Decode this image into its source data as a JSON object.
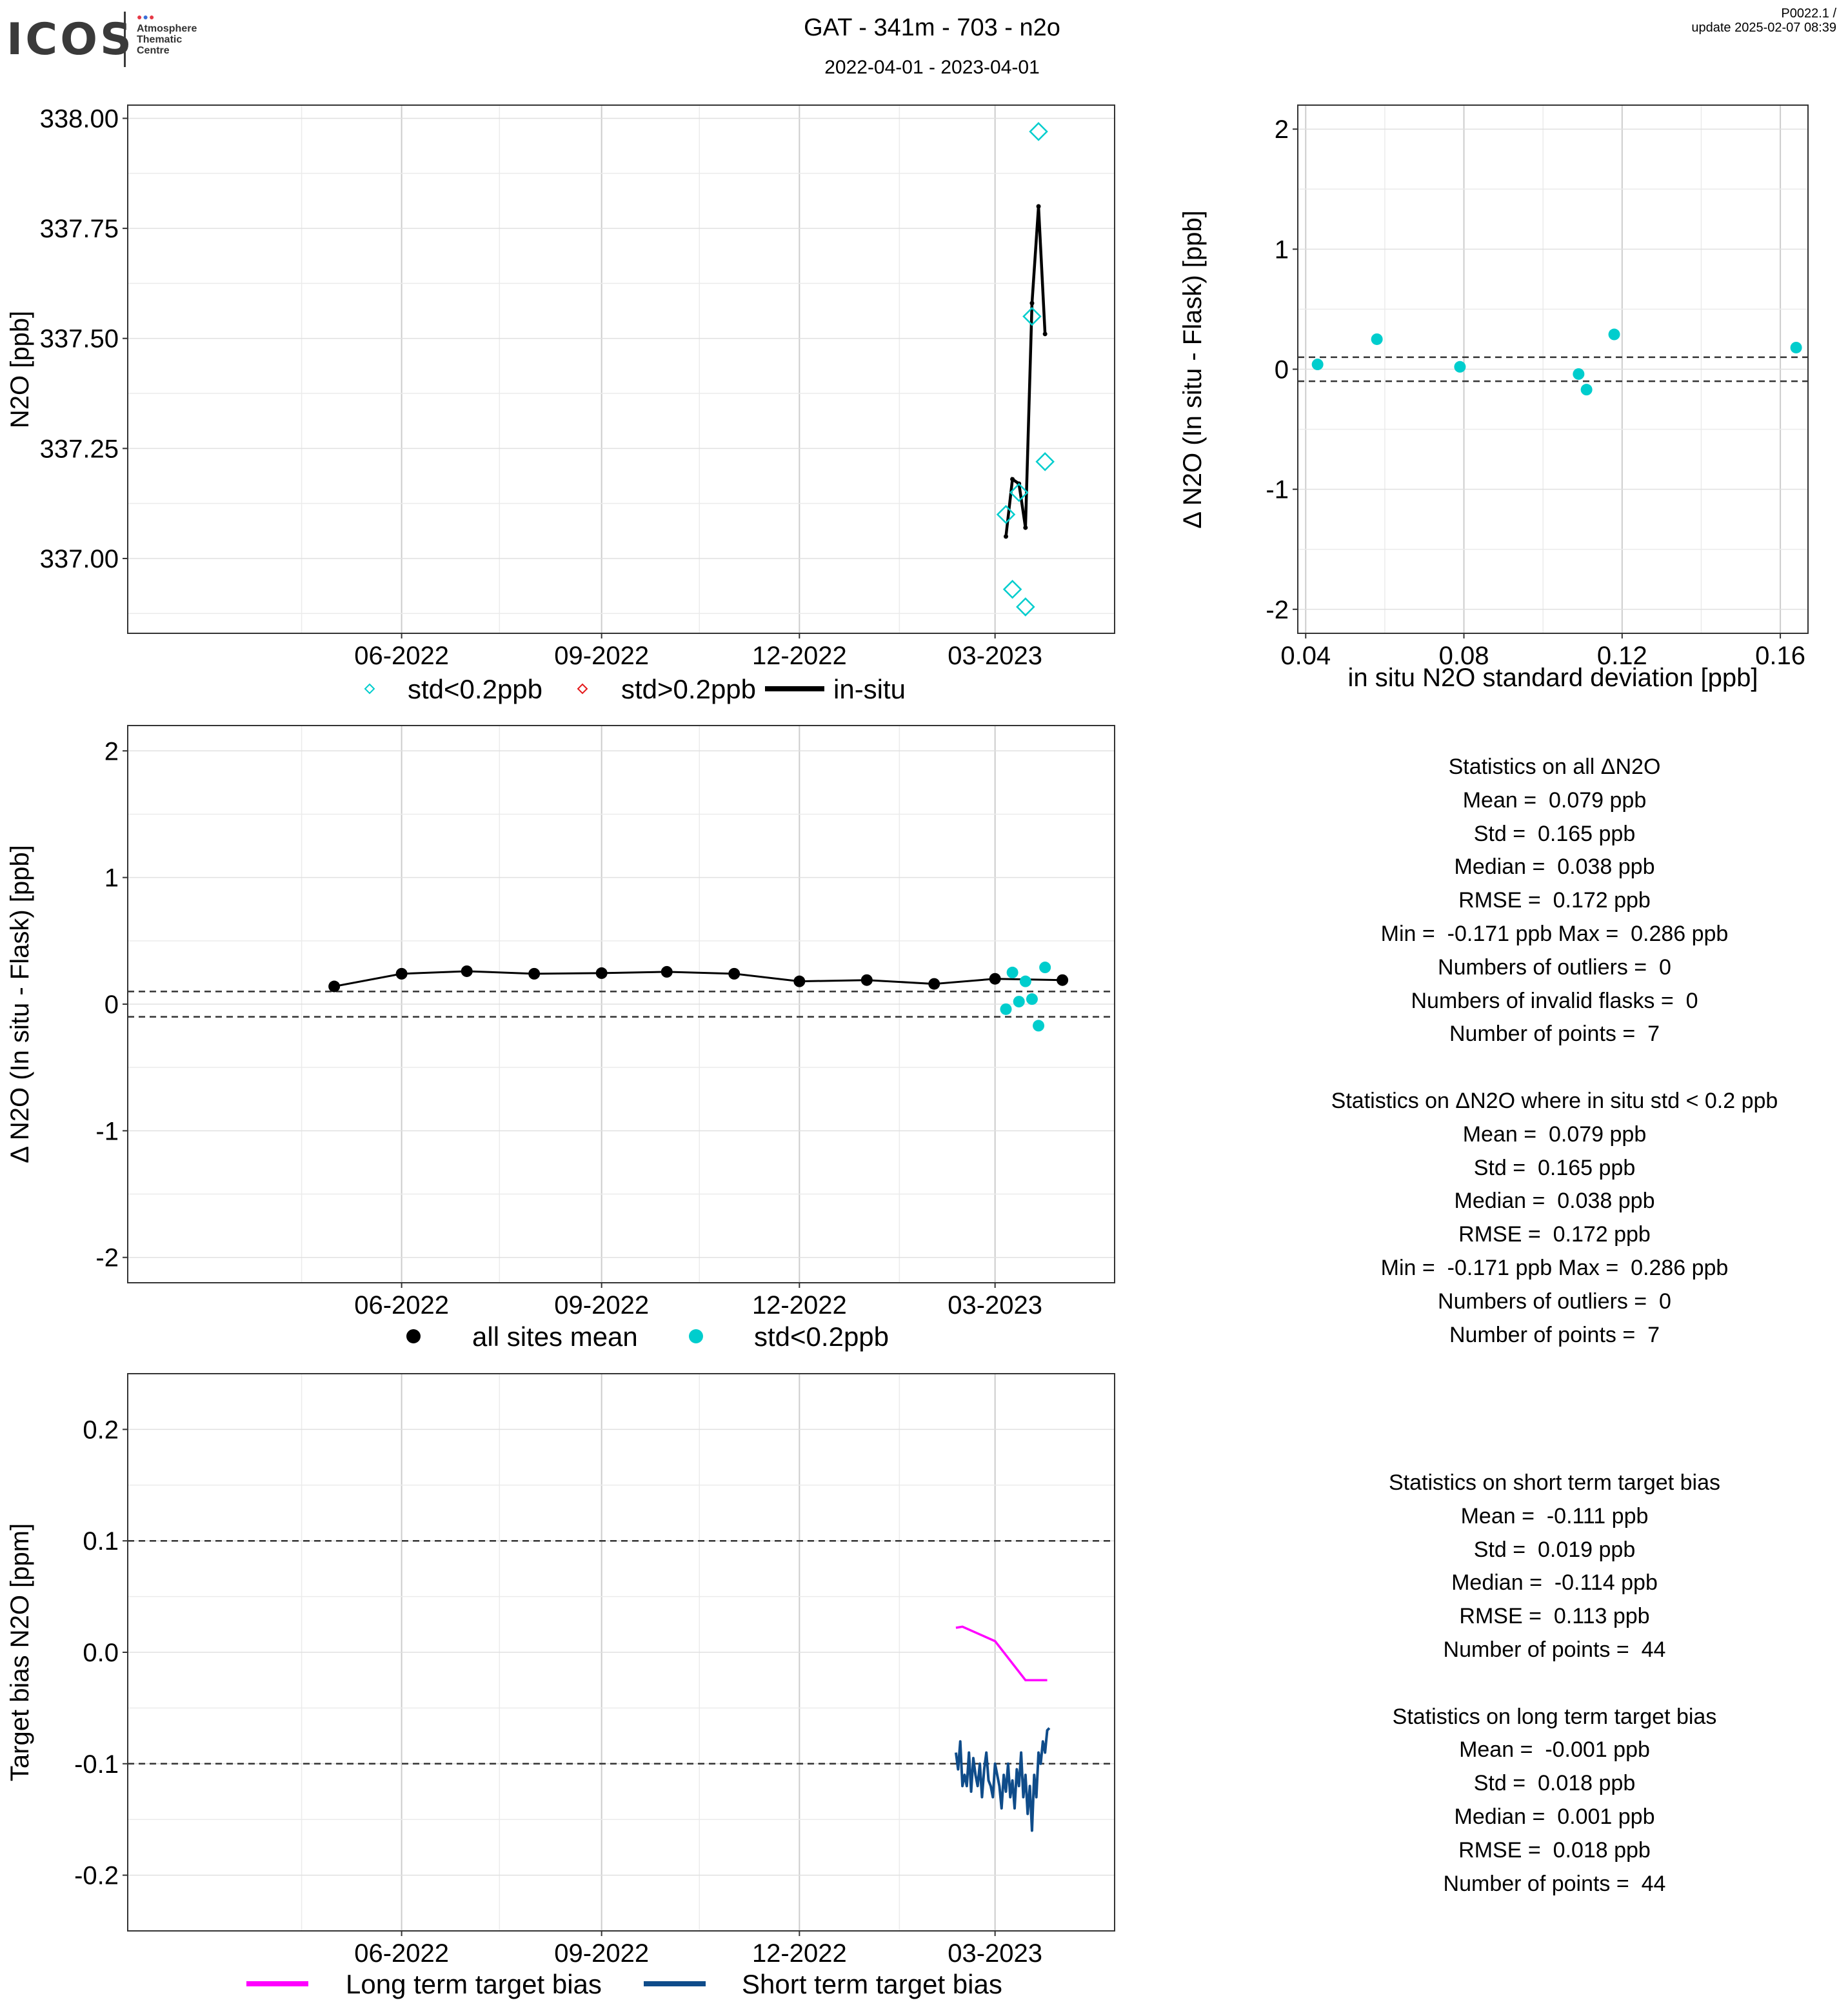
{
  "header": {
    "logo_text": "ICOS",
    "logo_subtitle": [
      "Atmosphere",
      "Thematic",
      "Centre"
    ],
    "title": "GAT - 341m - 703 - n2o",
    "date_range": "2022-04-01 - 2023-04-01",
    "version": "P0022.1 /",
    "update": "update  2025-02-07 08:39"
  },
  "colors": {
    "flask_low_std": "#00CDCD",
    "flask_high_std": "#E41A1C",
    "in_situ": "#000000",
    "long_term": "#FF00FF",
    "short_term": "#0F4C8A"
  },
  "chart_data": [
    {
      "id": "timeseries",
      "type": "line",
      "ylabel": "N2O [ppb]",
      "xlabel": "",
      "ylim": [
        336.83,
        338.03
      ],
      "yticks": [
        "337.00",
        "337.25",
        "337.50",
        "337.75",
        "338.00"
      ],
      "xticks": [
        "06-2022",
        "09-2022",
        "12-2022",
        "03-2023"
      ],
      "grid": true,
      "legend": [
        "std<0.2ppb",
        "std>0.2ppb",
        "in-situ"
      ],
      "legend_position": "bottom",
      "series": [
        {
          "name": "std<0.2ppb",
          "kind": "flask",
          "points": [
            [
              "2023-03-06",
              337.1
            ],
            [
              "2023-03-09",
              336.93
            ],
            [
              "2023-03-12",
              337.15
            ],
            [
              "2023-03-15",
              336.89
            ],
            [
              "2023-03-18",
              337.55
            ],
            [
              "2023-03-21",
              337.97
            ],
            [
              "2023-03-24",
              337.22
            ]
          ]
        },
        {
          "name": "std>0.2ppb",
          "kind": "flask",
          "points": []
        },
        {
          "name": "in-situ",
          "kind": "line",
          "points": [
            [
              "2023-03-06",
              337.05
            ],
            [
              "2023-03-09",
              337.18
            ],
            [
              "2023-03-12",
              337.17
            ],
            [
              "2023-03-15",
              337.07
            ],
            [
              "2023-03-18",
              337.58
            ],
            [
              "2023-03-21",
              337.8
            ],
            [
              "2023-03-24",
              337.51
            ]
          ]
        }
      ]
    },
    {
      "id": "delta_vs_std",
      "type": "scatter",
      "xlabel": "in situ N2O standard deviation [ppb]",
      "ylabel": "Δ N2O (In situ - Flask) [ppb]",
      "xlim": [
        0.038,
        0.167
      ],
      "ylim": [
        -2.2,
        2.2
      ],
      "xticks": [
        "0.04",
        "0.08",
        "0.12",
        "0.16"
      ],
      "yticks": [
        "-2",
        "-1",
        "0",
        "1",
        "2"
      ],
      "hlines": [
        0.1,
        -0.1
      ],
      "grid": true,
      "series": [
        {
          "name": "std<0.2ppb",
          "points": [
            [
              0.043,
              0.04
            ],
            [
              0.058,
              0.25
            ],
            [
              0.079,
              0.02
            ],
            [
              0.109,
              -0.04
            ],
            [
              0.111,
              -0.17
            ],
            [
              0.118,
              0.29
            ],
            [
              0.164,
              0.18
            ]
          ]
        }
      ]
    },
    {
      "id": "delta_timeseries",
      "type": "scatter",
      "ylabel": "Δ N2O (In situ - Flask) [ppb]",
      "xlabel": "",
      "ylim": [
        -2.2,
        2.2
      ],
      "yticks": [
        "-2",
        "-1",
        "0",
        "1",
        "2"
      ],
      "xticks": [
        "06-2022",
        "09-2022",
        "12-2022",
        "03-2023"
      ],
      "hlines": [
        0.1,
        -0.1
      ],
      "grid": true,
      "legend": [
        "all sites mean",
        "std<0.2ppb"
      ],
      "legend_position": "bottom",
      "series": [
        {
          "name": "all sites mean",
          "kind": "line",
          "points": [
            [
              "2022-05-01",
              0.14
            ],
            [
              "2022-06-01",
              0.24
            ],
            [
              "2022-07-01",
              0.26
            ],
            [
              "2022-08-01",
              0.24
            ],
            [
              "2022-09-01",
              0.245
            ],
            [
              "2022-10-01",
              0.255
            ],
            [
              "2022-11-01",
              0.24
            ],
            [
              "2022-12-01",
              0.18
            ],
            [
              "2023-01-01",
              0.19
            ],
            [
              "2023-02-01",
              0.16
            ],
            [
              "2023-03-01",
              0.2
            ],
            [
              "2023-04-01",
              0.19
            ]
          ]
        },
        {
          "name": "std<0.2ppb",
          "kind": "points",
          "points": [
            [
              "2023-03-06",
              -0.04
            ],
            [
              "2023-03-09",
              0.25
            ],
            [
              "2023-03-12",
              0.02
            ],
            [
              "2023-03-15",
              0.18
            ],
            [
              "2023-03-18",
              0.04
            ],
            [
              "2023-03-21",
              -0.17
            ],
            [
              "2023-03-24",
              0.29
            ]
          ]
        }
      ]
    },
    {
      "id": "target_bias",
      "type": "line",
      "ylabel": "Target bias N2O [ppm]",
      "xlabel": "",
      "ylim": [
        -0.25,
        0.25
      ],
      "yticks": [
        "-0.2",
        "-0.1",
        "0.0",
        "0.1",
        "0.2"
      ],
      "xticks": [
        "06-2022",
        "09-2022",
        "12-2022",
        "03-2023"
      ],
      "hlines": [
        0.1,
        -0.1
      ],
      "grid": true,
      "legend": [
        "Long term target bias",
        "Short term target bias"
      ],
      "legend_position": "bottom",
      "series": [
        {
          "name": "Long term target bias",
          "points": [
            [
              "2023-02-11",
              0.022
            ],
            [
              "2023-02-14",
              0.023
            ],
            [
              "2023-03-01",
              0.01
            ],
            [
              "2023-03-15",
              -0.025
            ],
            [
              "2023-03-25",
              -0.025
            ]
          ]
        },
        {
          "name": "Short term target bias",
          "points": [
            [
              "2023-02-11",
              -0.09
            ],
            [
              "2023-02-12",
              -0.105
            ],
            [
              "2023-02-13",
              -0.08
            ],
            [
              "2023-02-14",
              -0.12
            ],
            [
              "2023-02-15",
              -0.11
            ],
            [
              "2023-02-16",
              -0.12
            ],
            [
              "2023-02-17",
              -0.09
            ],
            [
              "2023-02-18",
              -0.125
            ],
            [
              "2023-02-19",
              -0.095
            ],
            [
              "2023-02-20",
              -0.11
            ],
            [
              "2023-02-21",
              -0.12
            ],
            [
              "2023-02-22",
              -0.1
            ],
            [
              "2023-02-23",
              -0.13
            ],
            [
              "2023-02-24",
              -0.105
            ],
            [
              "2023-02-25",
              -0.09
            ],
            [
              "2023-02-26",
              -0.115
            ],
            [
              "2023-02-27",
              -0.12
            ],
            [
              "2023-02-28",
              -0.13
            ],
            [
              "2023-03-01",
              -0.1
            ],
            [
              "2023-03-02",
              -0.11
            ],
            [
              "2023-03-03",
              -0.12
            ],
            [
              "2023-03-04",
              -0.14
            ],
            [
              "2023-03-05",
              -0.11
            ],
            [
              "2023-03-06",
              -0.125
            ],
            [
              "2023-03-07",
              -0.1
            ],
            [
              "2023-03-08",
              -0.13
            ],
            [
              "2023-03-09",
              -0.115
            ],
            [
              "2023-03-10",
              -0.14
            ],
            [
              "2023-03-11",
              -0.105
            ],
            [
              "2023-03-12",
              -0.12
            ],
            [
              "2023-03-13",
              -0.09
            ],
            [
              "2023-03-14",
              -0.13
            ],
            [
              "2023-03-15",
              -0.11
            ],
            [
              "2023-03-16",
              -0.145
            ],
            [
              "2023-03-17",
              -0.12
            ],
            [
              "2023-03-18",
              -0.16
            ],
            [
              "2023-03-19",
              -0.11
            ],
            [
              "2023-03-20",
              -0.13
            ],
            [
              "2023-03-21",
              -0.09
            ],
            [
              "2023-03-22",
              -0.1
            ],
            [
              "2023-03-23",
              -0.08
            ],
            [
              "2023-03-24",
              -0.09
            ],
            [
              "2023-03-25",
              -0.07
            ],
            [
              "2023-03-26",
              -0.068
            ]
          ]
        }
      ]
    }
  ],
  "stats_blocks": [
    {
      "id": "stats-all",
      "lines": [
        "Statistics on all ΔN2O",
        "Mean =  0.079 ppb",
        "Std =  0.165 ppb",
        "Median =  0.038 ppb",
        "RMSE =  0.172 ppb",
        "Min =  -0.171 ppb Max =  0.286 ppb",
        "Numbers of outliers =  0",
        "Numbers of invalid flasks =  0",
        "Number of points =  7",
        "",
        "Statistics on ΔN2O where in situ std < 0.2 ppb",
        "Mean =  0.079 ppb",
        "Std =  0.165 ppb",
        "Median =  0.038 ppb",
        "RMSE =  0.172 ppb",
        "Min =  -0.171 ppb Max =  0.286 ppb",
        "Numbers of outliers =  0",
        "Number of points =  7"
      ]
    },
    {
      "id": "stats-target",
      "lines": [
        "Statistics on short term target bias",
        "Mean =  -0.111 ppb",
        "Std =  0.019 ppb",
        "Median =  -0.114 ppb",
        "RMSE =  0.113 ppb",
        "Number of points =  44",
        "",
        "Statistics on long term target bias",
        "Mean =  -0.001 ppb",
        "Std =  0.018 ppb",
        "Median =  0.001 ppb",
        "RMSE =  0.018 ppb",
        "Number of points =  44"
      ]
    }
  ]
}
